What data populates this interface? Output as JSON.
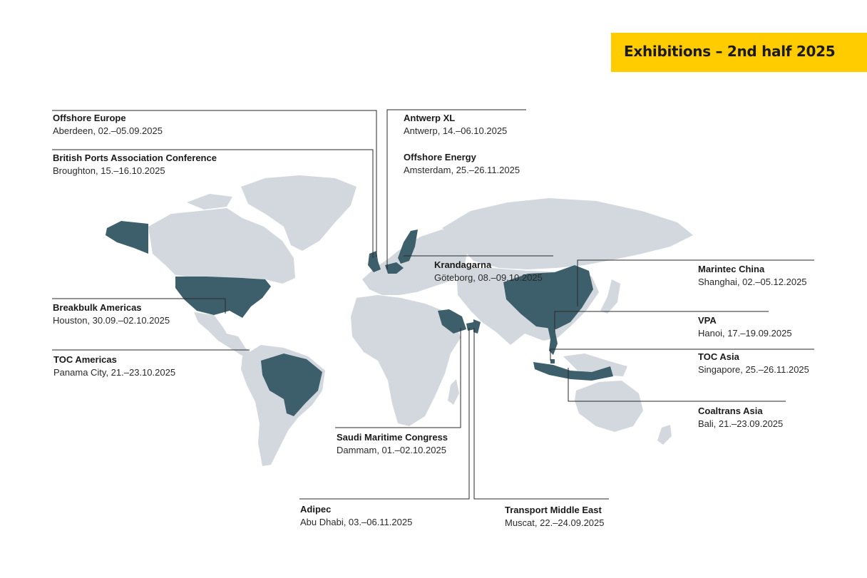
{
  "header": {
    "title": "Exhibitions – 2nd half 2025"
  },
  "colors": {
    "banner": "#ffcc00",
    "land": "#d2d8de",
    "highlight": "#3d5f6b"
  },
  "events": [
    {
      "name": "Offshore Europe",
      "place_date": "Aberdeen, 02.–05.09.2025"
    },
    {
      "name": "British Ports Association Conference",
      "place_date": "Broughton, 15.–16.10.2025"
    },
    {
      "name": "Antwerp XL",
      "place_date": "Antwerp, 14.–06.10.2025"
    },
    {
      "name": "Offshore Energy",
      "place_date": "Amsterdam, 25.–26.11.2025"
    },
    {
      "name": "Krandagarna",
      "place_date": "Göteborg, 08.–09.10.2025"
    },
    {
      "name": "Marintec China",
      "place_date": "Shanghai, 02.–05.12.2025"
    },
    {
      "name": "VPA",
      "place_date": "Hanoi, 17.–19.09.2025"
    },
    {
      "name": "TOC Asia",
      "place_date": "Singapore, 25.–26.11.2025"
    },
    {
      "name": "Coaltrans Asia",
      "place_date": "Bali, 21.–23.09.2025"
    },
    {
      "name": "Breakbulk Americas",
      "place_date": "Houston, 30.09.–02.10.2025"
    },
    {
      "name": "TOC Americas",
      "place_date": "Panama City, 21.–23.10.2025"
    },
    {
      "name": "Saudi Maritime Congress",
      "place_date": "Dammam, 01.–02.10.2025"
    },
    {
      "name": "Adipec",
      "place_date": "Abu Dhabi, 03.–06.11.2025"
    },
    {
      "name": "Transport Middle East",
      "place_date": "Muscat, 22.–24.09.2025"
    }
  ]
}
